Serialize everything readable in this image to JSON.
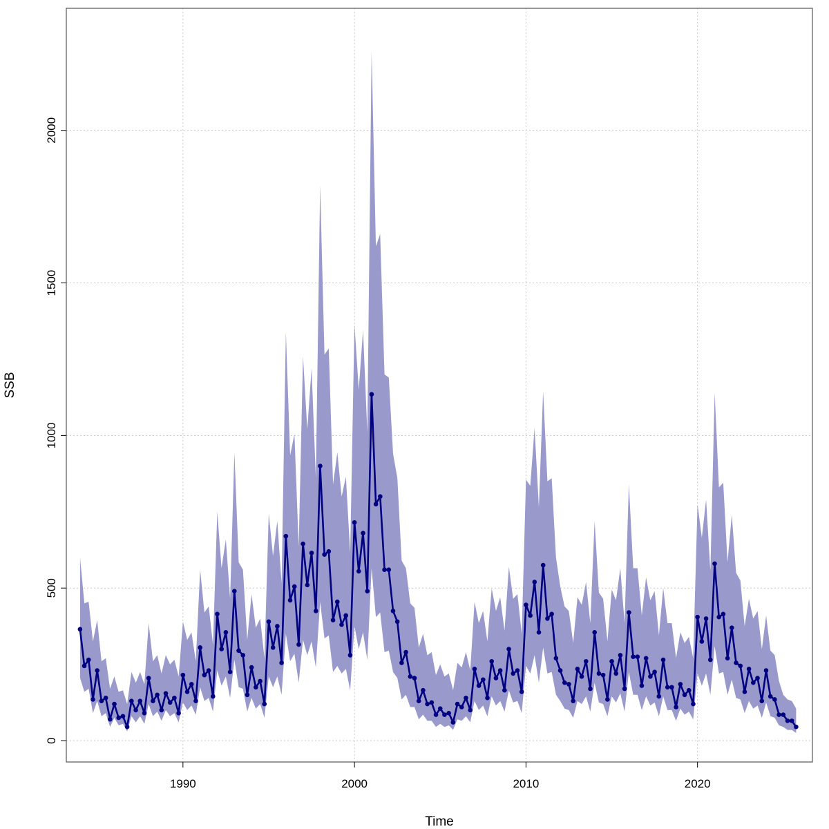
{
  "chart_data": {
    "type": "line",
    "xlabel": "Time",
    "ylabel": "SSB",
    "xlim": [
      1983.2,
      2026.7
    ],
    "ylim": [
      -70,
      2400
    ],
    "x_ticks": [
      1990,
      2000,
      2010,
      2020
    ],
    "y_ticks": [
      0,
      500,
      1000,
      1500,
      2000
    ],
    "grid": true,
    "colors": {
      "line": "#000080",
      "band": "#9999cc",
      "grid": "#c8c8c8",
      "axis": "#555555"
    },
    "series": [
      {
        "band": "confidence interval",
        "x": [
          1984.0,
          1984.25,
          1984.5,
          1984.75,
          1985.0,
          1985.25,
          1985.5,
          1985.75,
          1986.0,
          1986.25,
          1986.5,
          1986.75,
          1987.0,
          1987.25,
          1987.5,
          1987.75,
          1988.0,
          1988.25,
          1988.5,
          1988.75,
          1989.0,
          1989.25,
          1989.5,
          1989.75,
          1990.0,
          1990.25,
          1990.5,
          1990.75,
          1991.0,
          1991.25,
          1991.5,
          1991.75,
          1992.0,
          1992.25,
          1992.5,
          1992.75,
          1993.0,
          1993.25,
          1993.5,
          1993.75,
          1994.0,
          1994.25,
          1994.5,
          1994.75,
          1995.0,
          1995.25,
          1995.5,
          1995.75,
          1996.0,
          1996.25,
          1996.5,
          1996.75,
          1997.0,
          1997.25,
          1997.5,
          1997.75,
          1998.0,
          1998.25,
          1998.5,
          1998.75,
          1999.0,
          1999.25,
          1999.5,
          1999.75,
          2000.0,
          2000.25,
          2000.5,
          2000.75,
          2001.0,
          2001.25,
          2001.5,
          2001.75,
          2002.0,
          2002.25,
          2002.5,
          2002.75,
          2003.0,
          2003.25,
          2003.5,
          2003.75,
          2004.0,
          2004.25,
          2004.5,
          2004.75,
          2005.0,
          2005.25,
          2005.5,
          2005.75,
          2006.0,
          2006.25,
          2006.5,
          2006.75,
          2007.0,
          2007.25,
          2007.5,
          2007.75,
          2008.0,
          2008.25,
          2008.5,
          2008.75,
          2009.0,
          2009.25,
          2009.5,
          2009.75,
          2010.0,
          2010.25,
          2010.5,
          2010.75,
          2011.0,
          2011.25,
          2011.5,
          2011.75,
          2012.0,
          2012.25,
          2012.5,
          2012.75,
          2013.0,
          2013.25,
          2013.5,
          2013.75,
          2014.0,
          2014.25,
          2014.5,
          2014.75,
          2015.0,
          2015.25,
          2015.5,
          2015.75,
          2016.0,
          2016.25,
          2016.5,
          2016.75,
          2017.0,
          2017.25,
          2017.5,
          2017.75,
          2018.0,
          2018.25,
          2018.5,
          2018.75,
          2019.0,
          2019.25,
          2019.5,
          2019.75,
          2020.0,
          2020.25,
          2020.5,
          2020.75,
          2021.0,
          2021.25,
          2021.5,
          2021.75,
          2022.0,
          2022.25,
          2022.5,
          2022.75,
          2023.0,
          2023.25,
          2023.5,
          2023.75,
          2024.0,
          2024.25,
          2024.5,
          2024.75,
          2025.0,
          2025.25,
          2025.5,
          2025.75
        ],
        "y": [
          365,
          245,
          265,
          135,
          230,
          130,
          140,
          70,
          120,
          75,
          80,
          45,
          130,
          100,
          130,
          90,
          205,
          130,
          150,
          100,
          155,
          125,
          140,
          90,
          215,
          160,
          185,
          130,
          305,
          215,
          230,
          145,
          415,
          300,
          355,
          225,
          490,
          295,
          280,
          150,
          240,
          175,
          195,
          120,
          390,
          305,
          375,
          255,
          670,
          460,
          505,
          315,
          645,
          510,
          615,
          425,
          900,
          610,
          620,
          395,
          455,
          380,
          410,
          280,
          715,
          555,
          680,
          490,
          1135,
          775,
          800,
          560,
          560,
          425,
          390,
          255,
          290,
          210,
          205,
          130,
          165,
          120,
          125,
          85,
          105,
          85,
          90,
          60,
          120,
          110,
          140,
          100,
          235,
          180,
          200,
          140,
          260,
          205,
          230,
          165,
          300,
          220,
          230,
          160,
          445,
          410,
          520,
          355,
          575,
          400,
          415,
          270,
          230,
          190,
          185,
          130,
          235,
          210,
          260,
          170,
          355,
          220,
          215,
          135,
          260,
          220,
          280,
          170,
          420,
          275,
          275,
          180,
          270,
          210,
          225,
          145,
          265,
          175,
          175,
          110,
          185,
          150,
          165,
          120,
          405,
          325,
          400,
          265,
          580,
          405,
          415,
          270,
          370,
          255,
          245,
          160,
          235,
          190,
          205,
          130,
          230,
          145,
          135,
          85,
          85,
          65,
          65,
          45
        ],
        "upper": [
          600,
          450,
          455,
          325,
          395,
          260,
          270,
          170,
          210,
          160,
          165,
          120,
          225,
          190,
          225,
          185,
          385,
          260,
          280,
          220,
          280,
          250,
          265,
          210,
          390,
          330,
          355,
          260,
          560,
          420,
          440,
          315,
          750,
          565,
          660,
          465,
          945,
          585,
          560,
          330,
          480,
          370,
          400,
          270,
          745,
          605,
          720,
          515,
          1340,
          935,
          1005,
          635,
          1260,
          1020,
          1220,
          860,
          1820,
          1265,
          1285,
          840,
          945,
          800,
          865,
          615,
          1365,
          1150,
          1345,
          1010,
          2260,
          1620,
          1660,
          1200,
          1190,
          940,
          860,
          590,
          565,
          450,
          435,
          305,
          350,
          280,
          290,
          215,
          250,
          210,
          220,
          165,
          255,
          240,
          290,
          230,
          455,
          385,
          425,
          325,
          500,
          425,
          470,
          360,
          570,
          465,
          480,
          350,
          855,
          835,
          1025,
          765,
          1145,
          850,
          860,
          600,
          505,
          440,
          425,
          320,
          470,
          445,
          520,
          385,
          720,
          485,
          465,
          325,
          495,
          460,
          565,
          385,
          840,
          565,
          565,
          410,
          535,
          460,
          490,
          345,
          500,
          385,
          385,
          270,
          355,
          320,
          340,
          270,
          775,
          665,
          790,
          555,
          1140,
          830,
          845,
          585,
          740,
          550,
          525,
          375,
          465,
          400,
          425,
          300,
          410,
          295,
          280,
          195,
          150,
          135,
          130,
          105
        ],
        "lower": [
          205,
          160,
          170,
          90,
          130,
          80,
          90,
          45,
          75,
          50,
          55,
          30,
          80,
          60,
          80,
          55,
          120,
          80,
          95,
          65,
          100,
          80,
          90,
          60,
          125,
          100,
          115,
          85,
          175,
          130,
          140,
          95,
          230,
          180,
          210,
          140,
          265,
          175,
          170,
          95,
          140,
          105,
          120,
          75,
          210,
          175,
          210,
          150,
          350,
          260,
          285,
          190,
          330,
          280,
          325,
          240,
          455,
          335,
          345,
          225,
          245,
          220,
          235,
          165,
          375,
          300,
          355,
          265,
          565,
          405,
          420,
          290,
          295,
          225,
          205,
          135,
          150,
          110,
          110,
          70,
          85,
          65,
          65,
          45,
          55,
          45,
          50,
          35,
          70,
          65,
          80,
          60,
          130,
          100,
          115,
          80,
          145,
          115,
          130,
          95,
          165,
          125,
          130,
          90,
          245,
          220,
          280,
          190,
          305,
          220,
          225,
          150,
          130,
          105,
          100,
          75,
          130,
          120,
          145,
          95,
          190,
          125,
          120,
          80,
          145,
          125,
          155,
          95,
          225,
          150,
          150,
          100,
          145,
          115,
          125,
          80,
          145,
          100,
          100,
          65,
          105,
          85,
          95,
          70,
          220,
          180,
          220,
          150,
          310,
          220,
          225,
          150,
          200,
          140,
          135,
          90,
          130,
          105,
          115,
          75,
          125,
          80,
          75,
          50,
          45,
          35,
          35,
          25
        ]
      }
    ]
  }
}
